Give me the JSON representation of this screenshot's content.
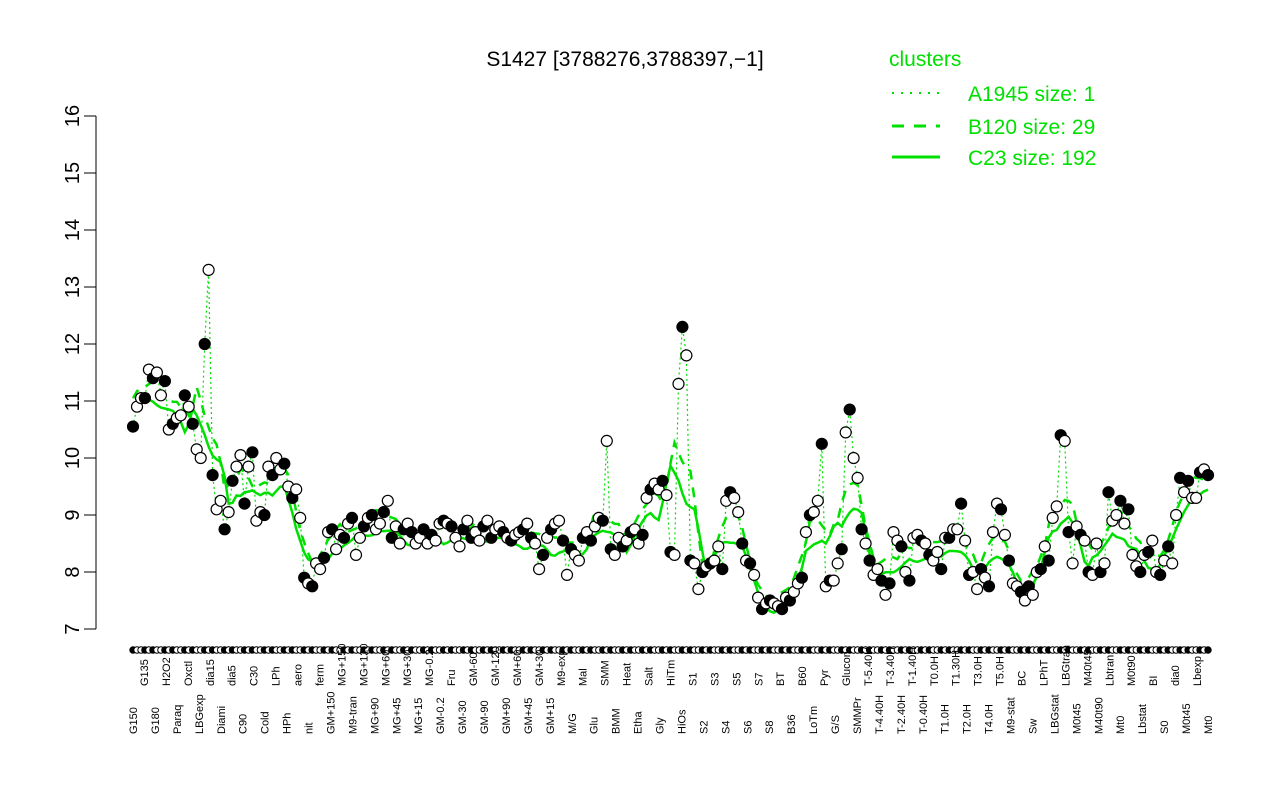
{
  "chart_data": {
    "type": "line",
    "title": "S1427 [3788276,3788397,−1]",
    "ylim": [
      7,
      16
    ],
    "yticks": [
      7,
      8,
      9,
      10,
      11,
      12,
      13,
      14,
      15,
      16
    ],
    "grid": false,
    "legend": {
      "title": "clusters",
      "position": "top-right",
      "entries": [
        {
          "label": "A1945 size: 1",
          "style": "dotted"
        },
        {
          "label": "B120 size: 29",
          "style": "dashed"
        },
        {
          "label": "C23 size: 192",
          "style": "solid"
        }
      ]
    },
    "colors": {
      "lines": "#00e000",
      "point_edge": "#000000"
    },
    "tick_labels": [
      "G150",
      "G135",
      "G180",
      "H2O2",
      "Paraq",
      "Oxctl",
      "LBGexp",
      "dia15",
      "Diami",
      "dia5",
      "C90",
      "C30",
      "Cold",
      "LPh",
      "HPh",
      "aero",
      "nit",
      "ferm",
      "GM+150",
      "MG+150",
      "M9-tran",
      "MG+120",
      "MG+90",
      "MG+60",
      "MG+45",
      "MG+30",
      "MG+15",
      "MG-0.2",
      "GM-0.2",
      "Fru",
      "GM-30",
      "GM-60",
      "GM-90",
      "GM-120",
      "GM+90",
      "GM+60",
      "GM+45",
      "GM+30",
      "GM+15",
      "M9-exp",
      "M/G",
      "Mal",
      "Glu",
      "SMM",
      "BMM",
      "Heat",
      "Etha",
      "Salt",
      "Gly",
      "HiTm",
      "HiOs",
      "S1",
      "S2",
      "S3",
      "S4",
      "S5",
      "S6",
      "S7",
      "S8",
      "BT",
      "B36",
      "B60",
      "LoTm",
      "Pyr",
      "G/S",
      "Glucon",
      "SMMPr",
      "T-5.40H",
      "T-4.40H",
      "T-3.40H",
      "T-2.40H",
      "T-1.40H",
      "T-0.40H",
      "T0.0H",
      "T1.0H",
      "T1.30H",
      "T2.0H",
      "T3.0H",
      "T4.0H",
      "T5.0H",
      "M9-stat",
      "BC",
      "Sw",
      "LPhT",
      "LBGstat",
      "LBGtran",
      "M0t45",
      "M40t45",
      "M40t90",
      "Lbtran",
      "Mt0",
      "M0t90",
      "Lbstat",
      "BI",
      "S0",
      "dia0",
      "M0t45",
      "Lbexp",
      "Mt0"
    ],
    "points": [
      10.55,
      10.9,
      11.05,
      11.05,
      11.55,
      11.4,
      11.5,
      11.1,
      11.35,
      10.5,
      10.6,
      10.7,
      10.75,
      11.1,
      10.9,
      10.6,
      10.15,
      10.0,
      12.0,
      13.3,
      9.7,
      9.1,
      9.25,
      8.75,
      9.05,
      9.6,
      9.85,
      10.05,
      9.2,
      9.85,
      10.1,
      8.9,
      9.05,
      9.0,
      9.85,
      9.7,
      10.0,
      9.8,
      9.9,
      9.5,
      9.3,
      9.45,
      8.95,
      7.9,
      7.8,
      7.75,
      8.15,
      8.05,
      8.25,
      8.7,
      8.75,
      8.4,
      8.65,
      8.6,
      8.85,
      8.95,
      8.3,
      8.6,
      8.8,
      8.95,
      9.0,
      8.75,
      8.85,
      9.05,
      9.25,
      8.6,
      8.8,
      8.5,
      8.75,
      8.85,
      8.7,
      8.5,
      8.6,
      8.75,
      8.5,
      8.65,
      8.55,
      8.85,
      8.9,
      8.85,
      8.8,
      8.6,
      8.45,
      8.75,
      8.9,
      8.6,
      8.7,
      8.55,
      8.8,
      8.9,
      8.6,
      8.75,
      8.8,
      8.7,
      8.6,
      8.55,
      8.65,
      8.7,
      8.75,
      8.85,
      8.6,
      8.5,
      8.05,
      8.3,
      8.6,
      8.75,
      8.85,
      8.9,
      8.55,
      7.95,
      8.4,
      8.3,
      8.2,
      8.6,
      8.7,
      8.55,
      8.8,
      8.95,
      8.9,
      10.3,
      8.4,
      8.3,
      8.6,
      8.45,
      8.55,
      8.7,
      8.75,
      8.5,
      8.65,
      9.3,
      9.45,
      9.55,
      9.45,
      9.6,
      9.35,
      8.35,
      8.3,
      11.3,
      12.3,
      11.8,
      8.2,
      8.15,
      7.7,
      8.0,
      8.1,
      8.15,
      8.2,
      8.45,
      8.05,
      9.25,
      9.4,
      9.3,
      9.05,
      8.5,
      8.2,
      8.15,
      7.95,
      7.55,
      7.35,
      7.45,
      7.5,
      7.45,
      7.4,
      7.35,
      7.55,
      7.5,
      7.65,
      7.8,
      7.9,
      8.7,
      9.0,
      9.05,
      9.25,
      10.25,
      7.75,
      7.85,
      7.85,
      8.15,
      8.4,
      10.45,
      10.85,
      10.0,
      9.65,
      8.75,
      8.5,
      8.2,
      7.95,
      8.05,
      7.85,
      7.6,
      7.8,
      8.7,
      8.55,
      8.45,
      8.0,
      7.85,
      8.6,
      8.65,
      8.55,
      8.5,
      8.3,
      8.2,
      8.35,
      8.05,
      8.6,
      8.6,
      8.75,
      8.75,
      9.2,
      8.55,
      7.95,
      8.0,
      7.7,
      8.05,
      7.9,
      7.75,
      8.7,
      9.2,
      9.1,
      8.65,
      8.2,
      7.8,
      7.75,
      7.65,
      7.5,
      7.75,
      7.6,
      8.0,
      8.05,
      8.45,
      8.2,
      8.95,
      9.15,
      10.4,
      10.3,
      8.7,
      8.15,
      8.8,
      8.65,
      8.55,
      8.0,
      7.95,
      8.5,
      8.0,
      8.15,
      9.4,
      8.9,
      9.0,
      9.25,
      8.85,
      9.1,
      8.3,
      8.1,
      8.0,
      8.3,
      8.35,
      8.55,
      8.0,
      7.95,
      8.2,
      8.45,
      8.15,
      9.0,
      9.65,
      9.4,
      9.6,
      9.3,
      9.3,
      9.75,
      9.8,
      9.7
    ]
  }
}
